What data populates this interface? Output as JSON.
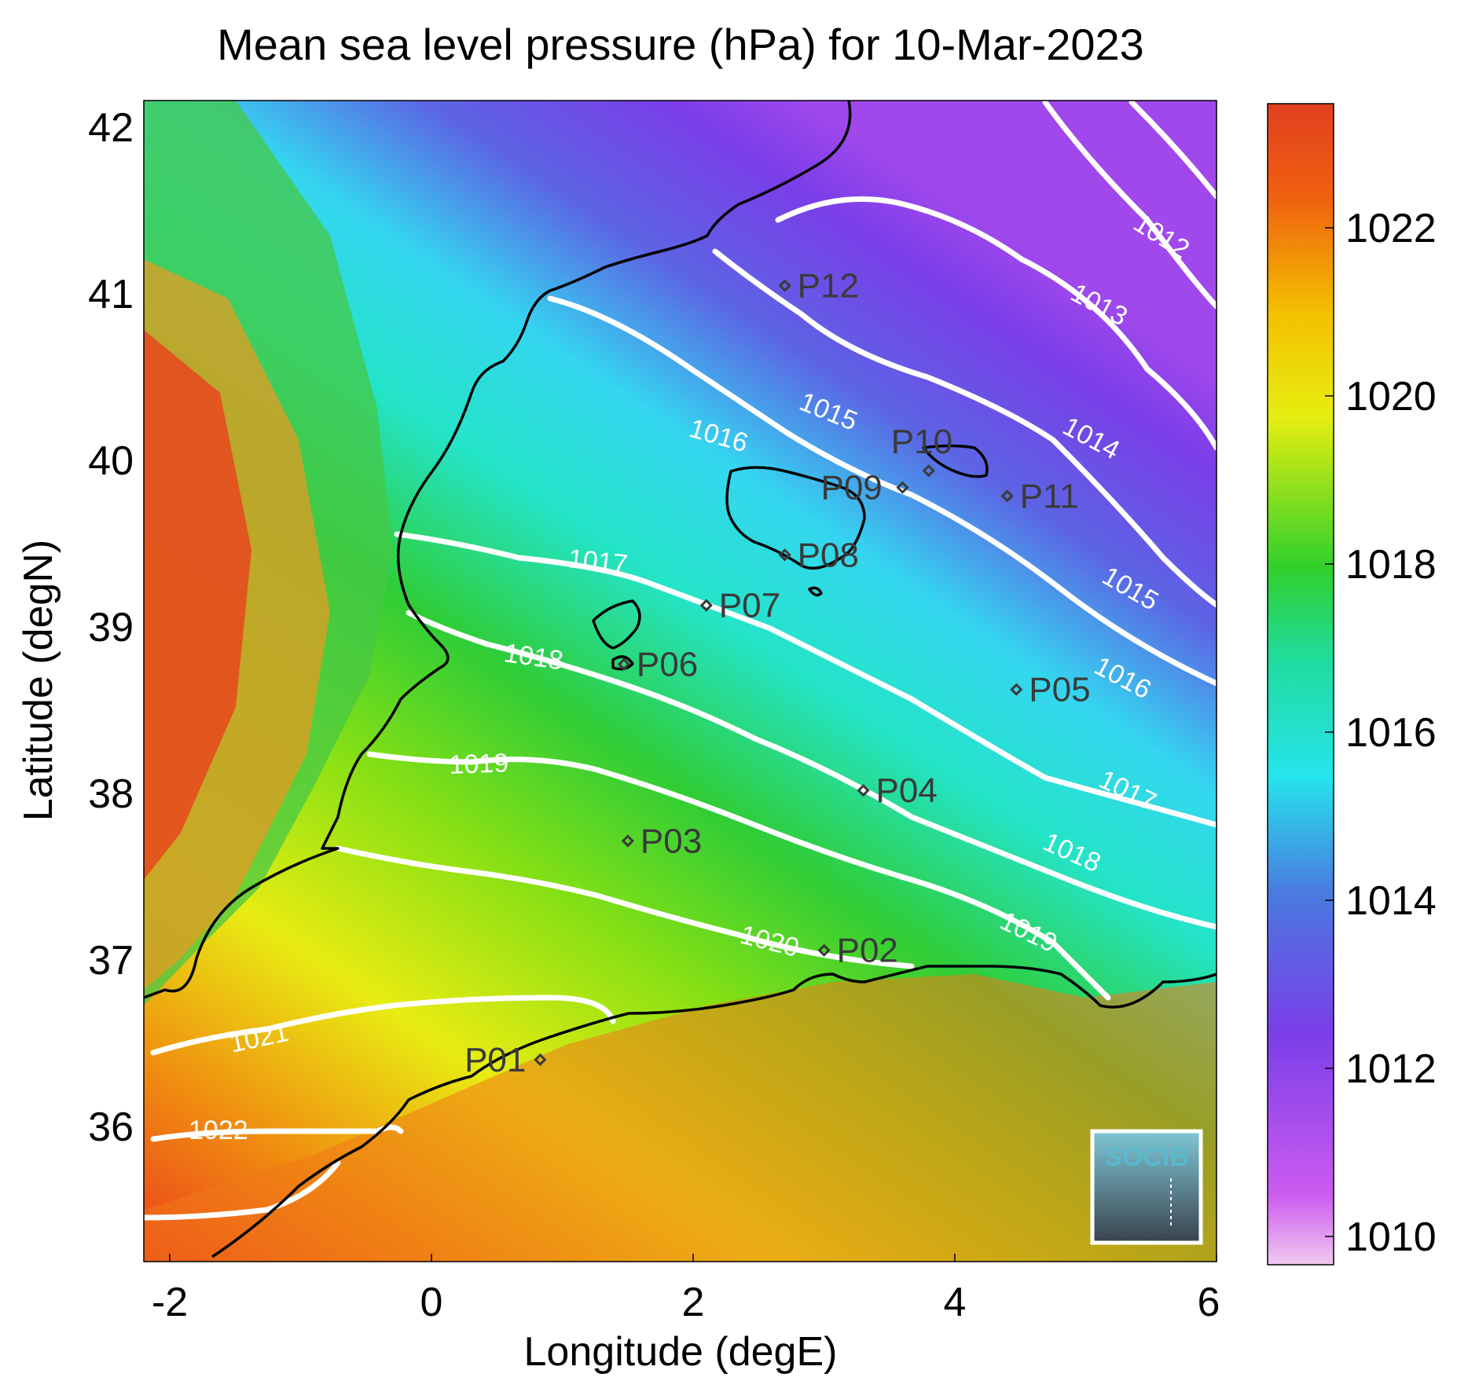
{
  "map": {
    "title": "Mean sea level pressure (hPa) for 10-Mar-2023",
    "xlabel": "Longitude (degE)",
    "ylabel": "Latitude (degN)",
    "x_ticks": [
      "-2",
      "0",
      "2",
      "4",
      "6"
    ],
    "y_ticks": [
      "42",
      "41",
      "40",
      "39",
      "38",
      "37",
      "36"
    ],
    "colorbar_ticks": [
      "1022",
      "1020",
      "1018",
      "1016",
      "1014",
      "1012",
      "1010"
    ],
    "colorbar_range": [
      1009.6,
      1023.4
    ],
    "lon_range": [
      -2.2,
      6.0
    ],
    "lat_range": [
      35.3,
      42.2
    ],
    "logo_text": "SOCIB",
    "colors": {
      "high": "#e3401e",
      "mid_yellow": "#e8ec10",
      "mid_green": "#2ccd3a",
      "mid_cyan": "#22e6e6",
      "low_purple": "#7a40e8",
      "lowest_pink": "#eec4ee",
      "contour": "#ffffff",
      "coast": "#000000"
    },
    "contour_labels": [
      {
        "text": "1012"
      },
      {
        "text": "1013"
      },
      {
        "text": "1014"
      },
      {
        "text": "1015"
      },
      {
        "text": "1015"
      },
      {
        "text": "1016"
      },
      {
        "text": "1016"
      },
      {
        "text": "1017"
      },
      {
        "text": "1017"
      },
      {
        "text": "1018"
      },
      {
        "text": "1018"
      },
      {
        "text": "1019"
      },
      {
        "text": "1019"
      },
      {
        "text": "1020"
      },
      {
        "text": "1021"
      },
      {
        "text": "1022"
      }
    ],
    "stations": [
      {
        "name": "P01",
        "lon": 0.83,
        "lat": 36.5
      },
      {
        "name": "P02",
        "lon": 3.0,
        "lat": 37.15
      },
      {
        "name": "P03",
        "lon": 1.5,
        "lat": 37.8
      },
      {
        "name": "P04",
        "lon": 3.3,
        "lat": 38.1
      },
      {
        "name": "P05",
        "lon": 4.47,
        "lat": 38.7
      },
      {
        "name": "P06",
        "lon": 1.47,
        "lat": 38.85
      },
      {
        "name": "P07",
        "lon": 2.1,
        "lat": 39.2
      },
      {
        "name": "P08",
        "lon": 2.7,
        "lat": 39.5
      },
      {
        "name": "P09",
        "lon": 3.6,
        "lat": 39.9
      },
      {
        "name": "P10",
        "lon": 3.8,
        "lat": 40.0
      },
      {
        "name": "P11",
        "lon": 4.4,
        "lat": 39.85
      },
      {
        "name": "P12",
        "lon": 2.7,
        "lat": 41.1
      }
    ]
  }
}
